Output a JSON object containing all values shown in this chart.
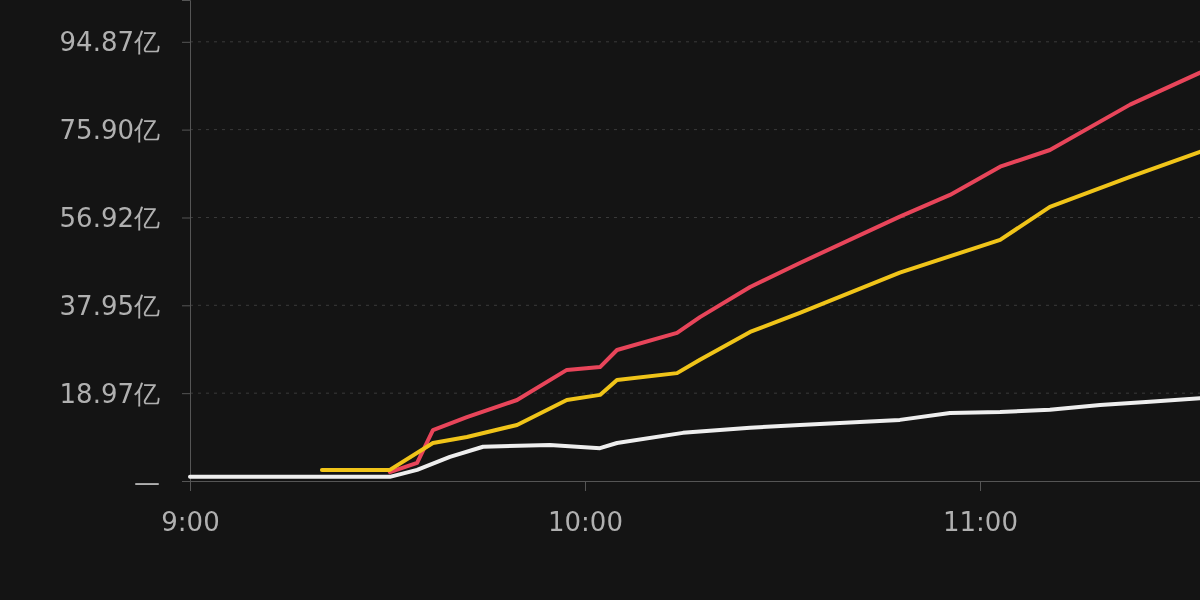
{
  "chart_data": {
    "type": "line",
    "xlim": [
      9,
      11.557
    ],
    "ylim": [
      0,
      103.9
    ],
    "xticks": [
      {
        "value": 9,
        "label": "9:00"
      },
      {
        "value": 10,
        "label": "10:00"
      },
      {
        "value": 11,
        "label": "11:00"
      }
    ],
    "yticks": [
      {
        "value": 0,
        "label": "—"
      },
      {
        "value": 18.97,
        "label": "18.97亿"
      },
      {
        "value": 37.95,
        "label": "37.95亿"
      },
      {
        "value": 56.92,
        "label": "56.92亿"
      },
      {
        "value": 75.9,
        "label": "75.90亿"
      },
      {
        "value": 94.87,
        "label": "94.87亿"
      }
    ],
    "grid": "y",
    "legend": false,
    "marker": "none",
    "line_style": "solid",
    "series": [
      {
        "color": "#e8455a",
        "x": [
          9.506,
          9.575,
          9.615,
          9.701,
          9.828,
          9.954,
          10.038,
          10.081,
          10.233,
          10.291,
          10.418,
          10.544,
          10.797,
          10.924,
          11.051,
          11.177,
          11.38,
          11.557
        ],
        "values": [
          1.9,
          3.9,
          11.0,
          13.8,
          17.5,
          24.0,
          24.6,
          28.3,
          32.0,
          35.4,
          41.9,
          47.1,
          57.1,
          61.8,
          67.9,
          71.5,
          81.3,
          88.2
        ]
      },
      {
        "color": "#f0c419",
        "x": [
          9.334,
          9.506,
          9.615,
          9.701,
          9.828,
          9.954,
          10.038,
          10.081,
          10.233,
          10.291,
          10.418,
          10.544,
          10.797,
          11.051,
          11.177,
          11.38,
          11.557
        ],
        "values": [
          2.4,
          2.4,
          8.2,
          9.5,
          12.1,
          17.5,
          18.6,
          21.8,
          23.3,
          26.2,
          32.2,
          36.3,
          45.0,
          52.1,
          59.2,
          65.7,
          71.1
        ]
      },
      {
        "color": "#eeeeee",
        "x": [
          9,
          9.506,
          9.575,
          9.658,
          9.742,
          9.911,
          10.038,
          10.081,
          10.248,
          10.418,
          10.544,
          10.797,
          10.924,
          11.051,
          11.177,
          11.304,
          11.43,
          11.557
        ],
        "values": [
          0.9,
          0.9,
          2.4,
          5.2,
          7.4,
          7.8,
          7.1,
          8.2,
          10.4,
          11.5,
          12.1,
          13.2,
          14.7,
          14.9,
          15.4,
          16.4,
          17.1,
          17.9
        ]
      }
    ]
  }
}
